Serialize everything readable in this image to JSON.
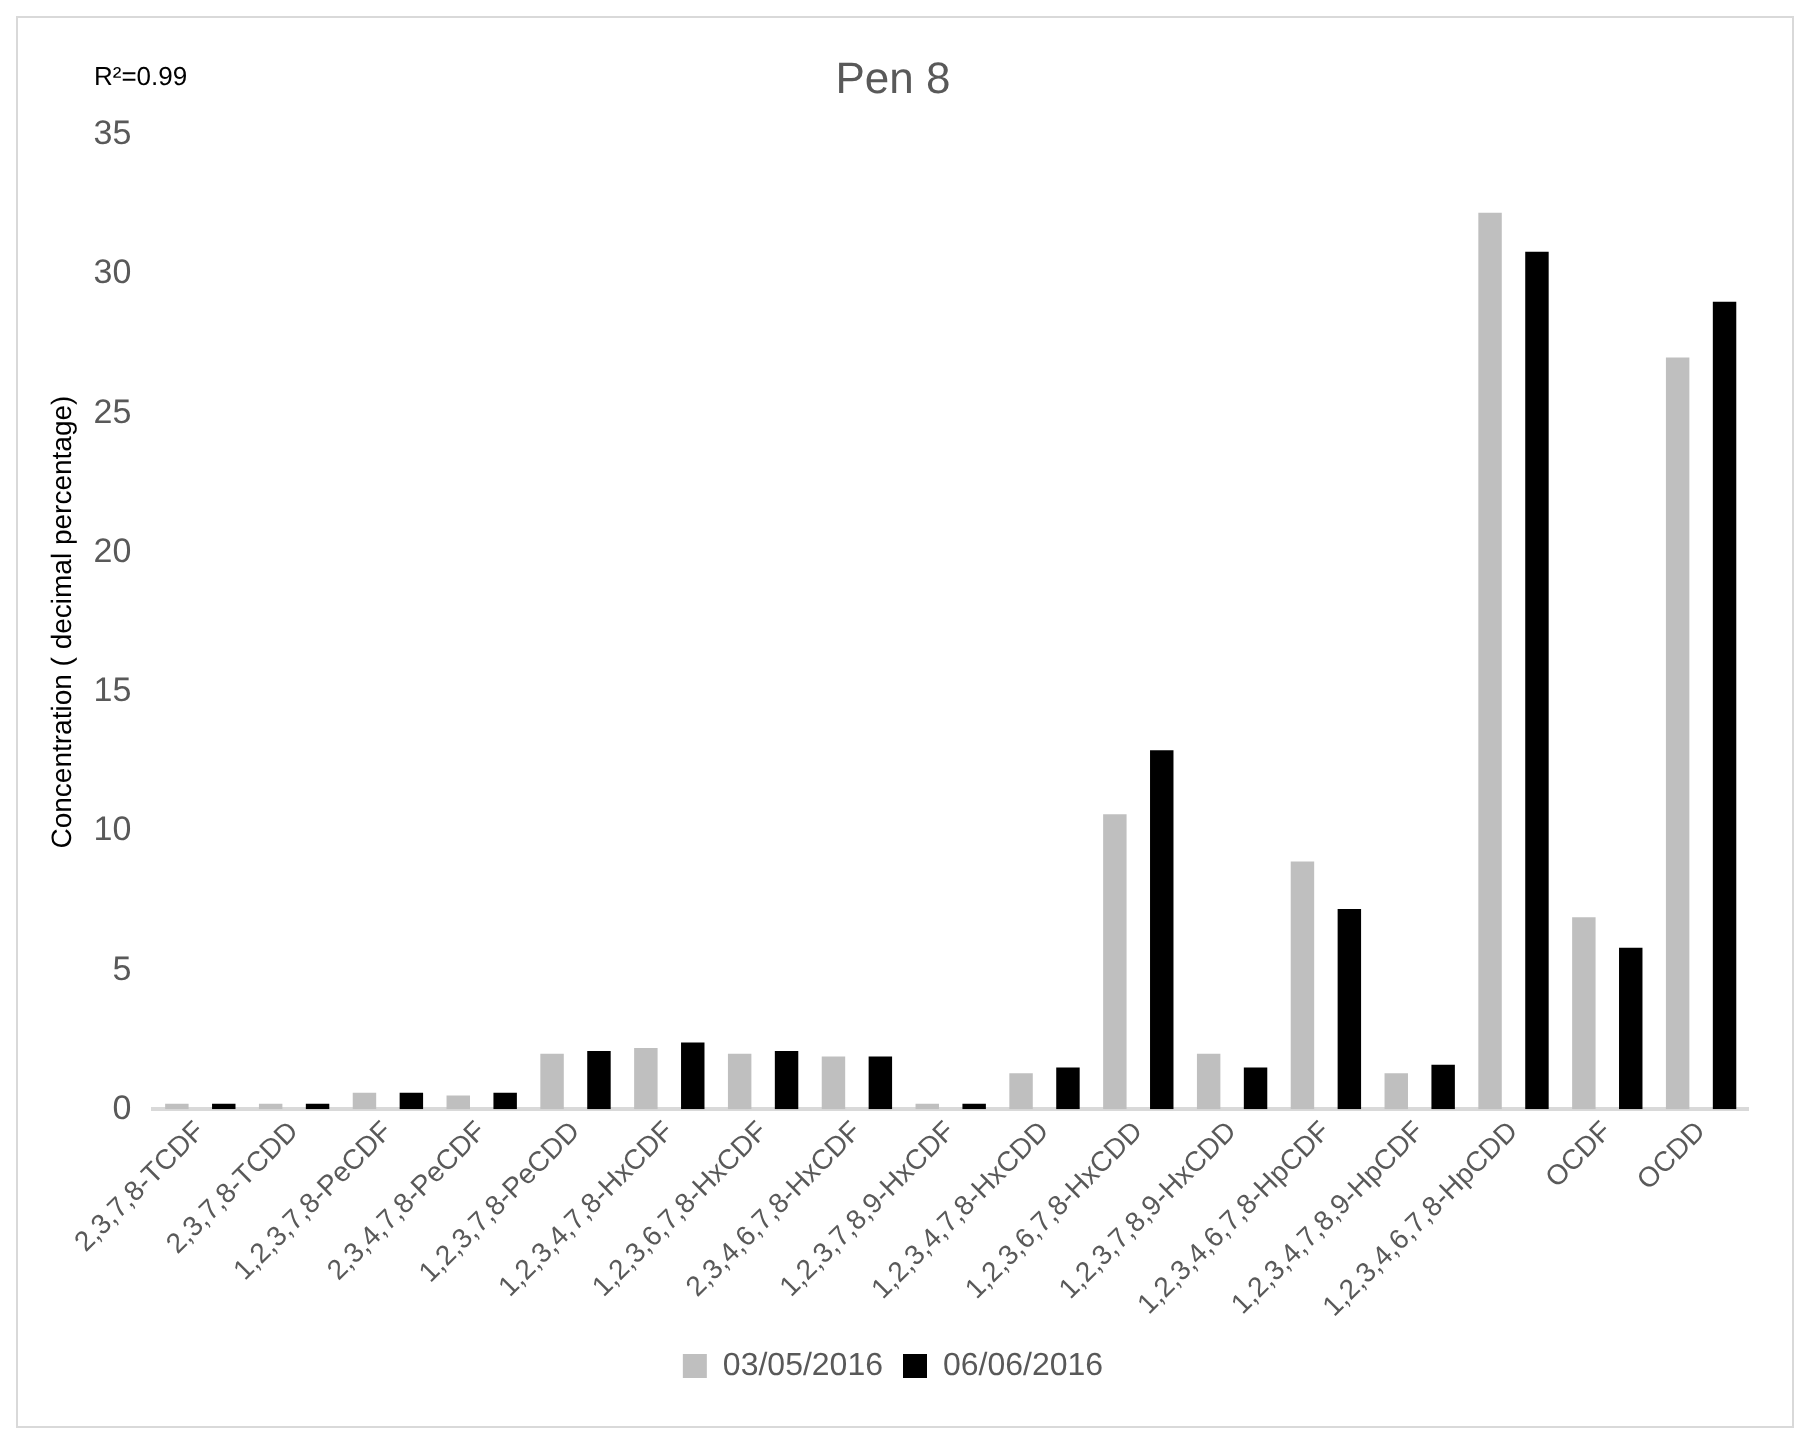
{
  "chart_data": {
    "type": "bar",
    "title": "Pen 8",
    "ylabel": "Concentration ( decimal percentage)",
    "annotations": [
      "R²=0.99"
    ],
    "categories": [
      "2,3,7,8-TCDF",
      "2,3,7,8-TCDD",
      "1,2,3,7,8-PeCDF",
      "2,3,4,7,8-PeCDF",
      "1,2,3,7,8-PeCDD",
      "1,2,3,4,7,8-HxCDF",
      "1,2,3,6,7,8-HxCDF",
      "2,3,4,6,7,8-HxCDF",
      "1,2,3,7,8,9-HxCDF",
      "1,2,3,4,7,8-HxCDD",
      "1,2,3,6,7,8-HxCDD",
      "1,2,3,7,8,9-HxCDD",
      "1,2,3,4,6,7,8-HpCDF",
      "1,2,3,4,7,8,9-HpCDF",
      "1,2,3,4,6,7,8-HpCDD",
      "OCDF",
      "OCDD"
    ],
    "series": [
      {
        "name": "03/05/2016",
        "color": "#bfbfbf",
        "values": [
          0.2,
          0.2,
          0.6,
          0.5,
          2.0,
          2.2,
          2.0,
          1.9,
          0.2,
          1.3,
          10.6,
          2.0,
          8.9,
          1.3,
          32.2,
          6.9,
          27.0
        ]
      },
      {
        "name": "06/06/2016",
        "color": "#000000",
        "values": [
          0.2,
          0.2,
          0.6,
          0.6,
          2.1,
          2.4,
          2.1,
          1.9,
          0.2,
          1.5,
          12.9,
          1.5,
          7.2,
          1.6,
          30.8,
          5.8,
          29.0
        ]
      }
    ],
    "ylim": [
      0,
      35
    ],
    "yticks": [
      0,
      5,
      10,
      15,
      20,
      25,
      30,
      35
    ],
    "grid": false,
    "legend": "bottom"
  }
}
